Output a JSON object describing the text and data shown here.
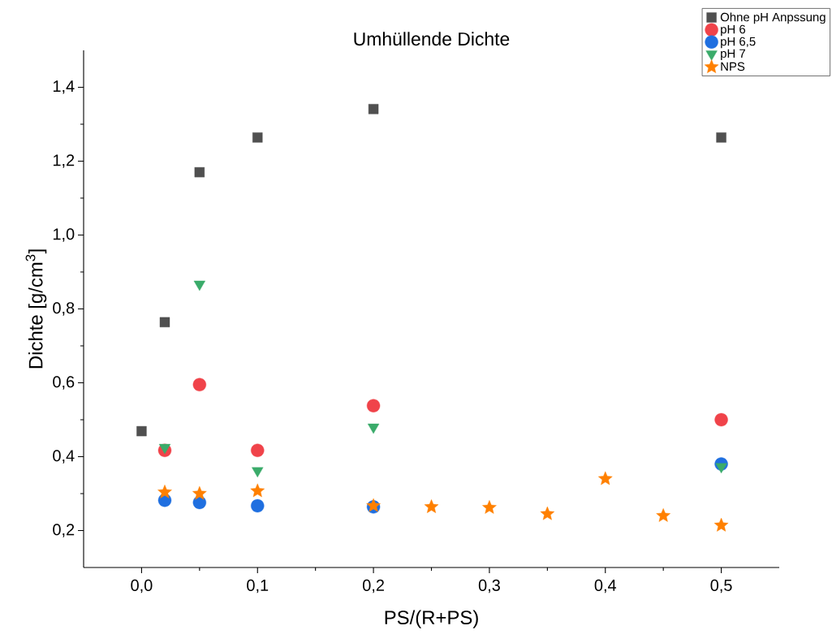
{
  "chart_data": {
    "type": "scatter",
    "title": "Umhüllende Dichte",
    "xlabel": "PS/(R+PS)",
    "ylabel": "Dichte [g/cm$^{3}$]",
    "xlim": [
      -0.05,
      0.55
    ],
    "ylim": [
      0.1,
      1.5
    ],
    "xticks": [
      {
        "value": 0.0,
        "label": "0,0"
      },
      {
        "value": 0.05,
        "label": null
      },
      {
        "value": 0.1,
        "label": "0,1"
      },
      {
        "value": 0.15,
        "label": null
      },
      {
        "value": 0.2,
        "label": "0,2"
      },
      {
        "value": 0.25,
        "label": null
      },
      {
        "value": 0.3,
        "label": "0,3"
      },
      {
        "value": 0.35,
        "label": null
      },
      {
        "value": 0.4,
        "label": "0,4"
      },
      {
        "value": 0.45,
        "label": null
      },
      {
        "value": 0.5,
        "label": "0,5"
      }
    ],
    "yticks": [
      {
        "value": 0.2,
        "label": "0,2"
      },
      {
        "value": 0.3,
        "label": null
      },
      {
        "value": 0.4,
        "label": "0,4"
      },
      {
        "value": 0.5,
        "label": null
      },
      {
        "value": 0.6,
        "label": "0,6"
      },
      {
        "value": 0.7,
        "label": null
      },
      {
        "value": 0.8,
        "label": "0,8"
      },
      {
        "value": 0.9,
        "label": null
      },
      {
        "value": 1.0,
        "label": "1,0"
      },
      {
        "value": 1.1,
        "label": null
      },
      {
        "value": 1.2,
        "label": "1,2"
      },
      {
        "value": 1.3,
        "label": null
      },
      {
        "value": 1.4,
        "label": "1,4"
      }
    ],
    "legend": "top right",
    "grid": false,
    "series": [
      {
        "name": "Ohne pH Anpssung",
        "color": "#505050",
        "marker": "square",
        "x": [
          0.0,
          0.02,
          0.05,
          0.1,
          0.2,
          0.5
        ],
        "values": [
          0.469,
          0.764,
          1.17,
          1.264,
          1.341,
          1.264
        ]
      },
      {
        "name": "pH 6",
        "color": "#f0434a",
        "marker": "circle",
        "x": [
          0.02,
          0.05,
          0.1,
          0.2,
          0.5
        ],
        "values": [
          0.417,
          0.595,
          0.417,
          0.538,
          0.5
        ]
      },
      {
        "name": "pH 6,5",
        "color": "#1f6fe0",
        "marker": "circle",
        "x": [
          0.02,
          0.05,
          0.1,
          0.2,
          0.5
        ],
        "values": [
          0.282,
          0.276,
          0.267,
          0.264,
          0.38
        ]
      },
      {
        "name": "pH 7",
        "color": "#3aab6a",
        "marker": "triangle",
        "x": [
          0.02,
          0.05,
          0.1,
          0.2,
          0.5
        ],
        "values": [
          0.425,
          0.867,
          0.362,
          0.48,
          0.373
        ]
      },
      {
        "name": "NPS",
        "color": "#ff8000",
        "marker": "star",
        "x": [
          0.02,
          0.05,
          0.1,
          0.2,
          0.25,
          0.3,
          0.35,
          0.4,
          0.45,
          0.5
        ],
        "values": [
          0.304,
          0.3,
          0.307,
          0.267,
          0.264,
          0.262,
          0.245,
          0.34,
          0.24,
          0.214
        ]
      }
    ]
  }
}
